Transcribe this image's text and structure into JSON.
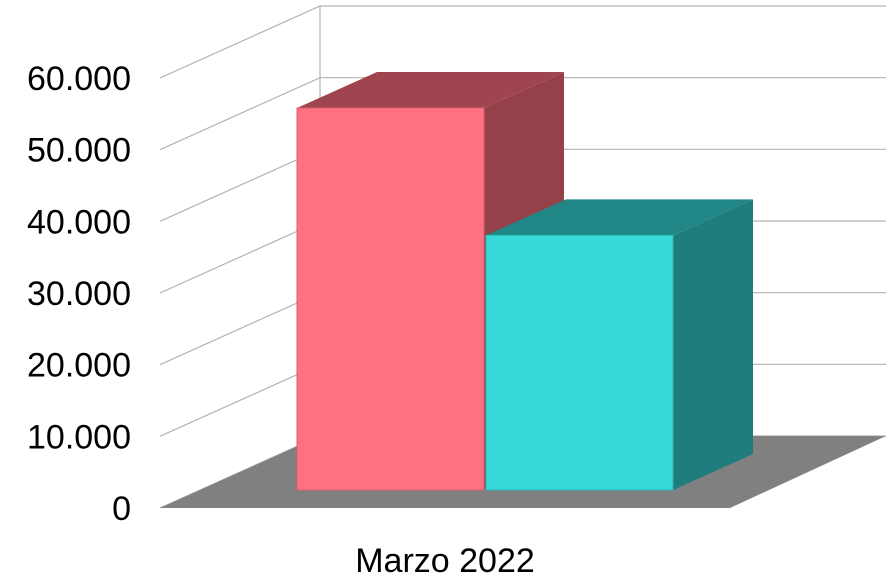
{
  "chart_data": {
    "type": "bar",
    "title": "",
    "xlabel": "",
    "ylabel": "",
    "categories": [
      "Marzo 2022"
    ],
    "series": [
      {
        "values": [
          54000
        ],
        "color": "#ff7080"
      },
      {
        "values": [
          36000
        ],
        "color": "#36d8d8"
      }
    ],
    "ylim": [
      0,
      60000
    ],
    "yticks": [
      {
        "value": 0,
        "label": "0"
      },
      {
        "value": 10000,
        "label": "10.000"
      },
      {
        "value": 20000,
        "label": "20.000"
      },
      {
        "value": 30000,
        "label": "30.000"
      },
      {
        "value": 40000,
        "label": "40.000"
      },
      {
        "value": 50000,
        "label": "50.000"
      },
      {
        "value": 60000,
        "label": "60.000"
      }
    ],
    "grid": true,
    "legend": "none",
    "style": "3d",
    "floor_color": "#808080",
    "grid_color": "#b3b3b3"
  }
}
